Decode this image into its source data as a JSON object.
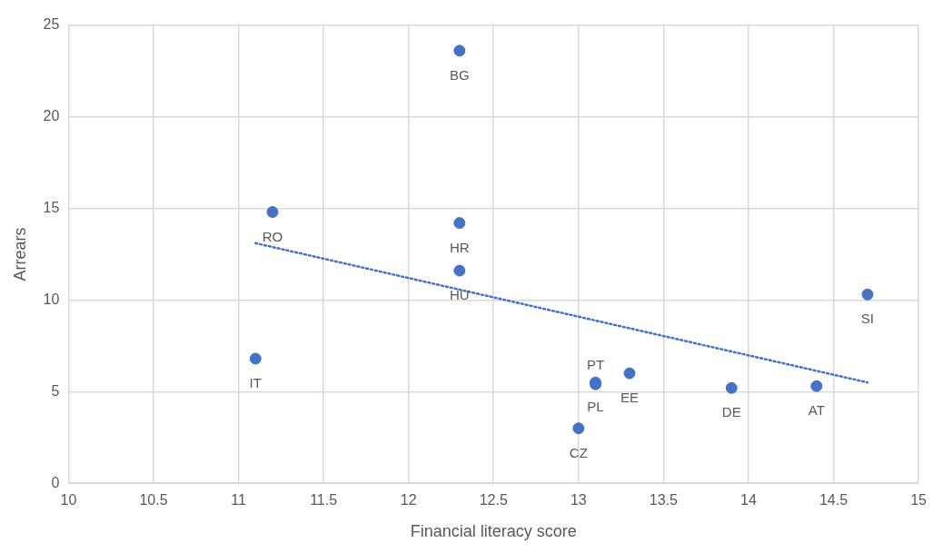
{
  "chart_data": {
    "type": "scatter",
    "xlabel": "Financial literacy score",
    "ylabel": "Arrears",
    "xlim": [
      10,
      15
    ],
    "xticks": [
      10,
      10.5,
      11,
      11.5,
      12,
      12.5,
      13,
      13.5,
      14,
      14.5,
      15
    ],
    "ylim": [
      0,
      25
    ],
    "yticks": [
      0,
      5,
      10,
      15,
      20,
      25
    ],
    "grid": true,
    "legend": false,
    "marker": "circle",
    "series": [
      {
        "type": "scatter",
        "color": "#4472c4",
        "x": [
          12.3,
          11.2,
          12.3,
          12.3,
          11.1,
          14.7,
          13.3,
          13.9,
          14.4,
          13.1,
          13.1,
          13.0
        ],
        "values": [
          23.6,
          14.8,
          14.2,
          11.6,
          6.8,
          10.3,
          6.0,
          5.2,
          5.3,
          5.5,
          5.4,
          3.0
        ],
        "value_labels": [
          "BG",
          "RO",
          "HR",
          "HU",
          "IT",
          "SI",
          "EE",
          "DE",
          "AT",
          "PL",
          "PT",
          "CZ"
        ]
      },
      {
        "type": "line",
        "color": "#4472c4",
        "line_style": "dotted",
        "marker": "none",
        "x": [
          11.1,
          14.7
        ],
        "values": [
          13.1,
          5.5
        ]
      }
    ]
  }
}
